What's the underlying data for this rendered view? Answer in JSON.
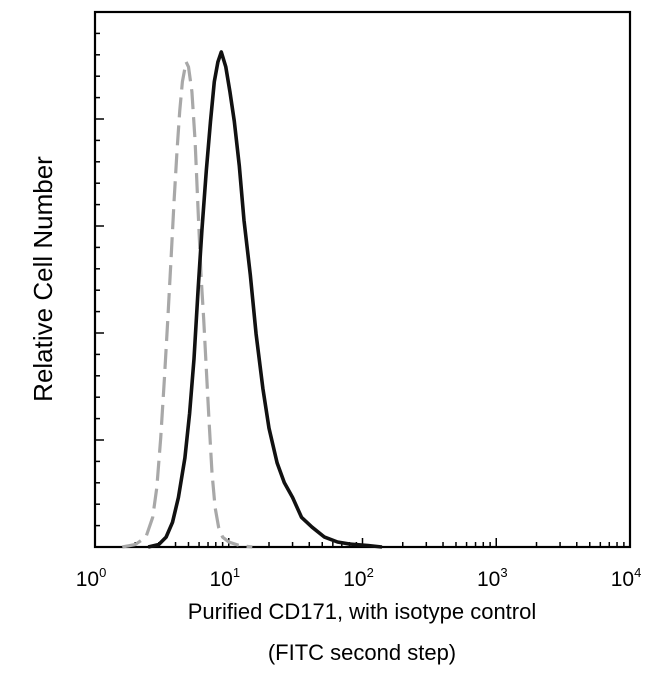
{
  "chart_data": {
    "type": "line",
    "x_scale": "log",
    "xlim": [
      1,
      10000
    ],
    "ylim": [
      0,
      100
    ],
    "grid": false,
    "legend": "none",
    "xlabel": "Purified CD171, with isotype control",
    "xlabel_line2": "(FITC second step)",
    "ylabel": "Relative Cell Number",
    "x_ticks": [
      {
        "base": "10",
        "exp": "0",
        "value": 1
      },
      {
        "base": "10",
        "exp": "1",
        "value": 10
      },
      {
        "base": "10",
        "exp": "2",
        "value": 100
      },
      {
        "base": "10",
        "exp": "3",
        "value": 1000
      },
      {
        "base": "10",
        "exp": "4",
        "value": 10000
      }
    ],
    "series": [
      {
        "line_style": "dashed",
        "color": "#a8a8a8",
        "points": [
          [
            1.6,
            0
          ],
          [
            2.0,
            0.5
          ],
          [
            2.4,
            2
          ],
          [
            2.7,
            6
          ],
          [
            2.9,
            12
          ],
          [
            3.1,
            22
          ],
          [
            3.3,
            34
          ],
          [
            3.5,
            46
          ],
          [
            3.7,
            58
          ],
          [
            3.9,
            70
          ],
          [
            4.1,
            80
          ],
          [
            4.3,
            88
          ],
          [
            4.5,
            94
          ],
          [
            4.8,
            98
          ],
          [
            5.0,
            97
          ],
          [
            5.3,
            92
          ],
          [
            5.6,
            82
          ],
          [
            5.9,
            68
          ],
          [
            6.2,
            55
          ],
          [
            6.5,
            46
          ],
          [
            6.8,
            36
          ],
          [
            7.1,
            26
          ],
          [
            7.5,
            15
          ],
          [
            7.9,
            8
          ],
          [
            8.4,
            4
          ],
          [
            9.0,
            2
          ],
          [
            10.0,
            1
          ],
          [
            12.0,
            0.3
          ],
          [
            15.0,
            0
          ]
        ]
      },
      {
        "line_style": "solid",
        "color": "#111111",
        "points": [
          [
            2.5,
            0
          ],
          [
            3.0,
            0.5
          ],
          [
            3.4,
            2
          ],
          [
            3.8,
            5
          ],
          [
            4.2,
            10
          ],
          [
            4.7,
            18
          ],
          [
            5.1,
            27
          ],
          [
            5.5,
            38
          ],
          [
            5.9,
            52
          ],
          [
            6.3,
            64
          ],
          [
            6.8,
            76
          ],
          [
            7.3,
            86
          ],
          [
            7.8,
            94
          ],
          [
            8.3,
            98
          ],
          [
            8.8,
            100
          ],
          [
            9.5,
            97
          ],
          [
            10.2,
            92
          ],
          [
            11.0,
            86
          ],
          [
            12.0,
            77
          ],
          [
            13.0,
            66
          ],
          [
            14.5,
            55
          ],
          [
            16.0,
            43
          ],
          [
            18.0,
            32
          ],
          [
            20.0,
            24
          ],
          [
            23.0,
            17
          ],
          [
            26.0,
            13
          ],
          [
            30.0,
            10
          ],
          [
            35.0,
            6
          ],
          [
            42.0,
            4
          ],
          [
            52.0,
            2
          ],
          [
            65.0,
            1
          ],
          [
            80.0,
            0.6
          ],
          [
            110.0,
            0.3
          ],
          [
            140.0,
            0
          ]
        ]
      }
    ]
  }
}
